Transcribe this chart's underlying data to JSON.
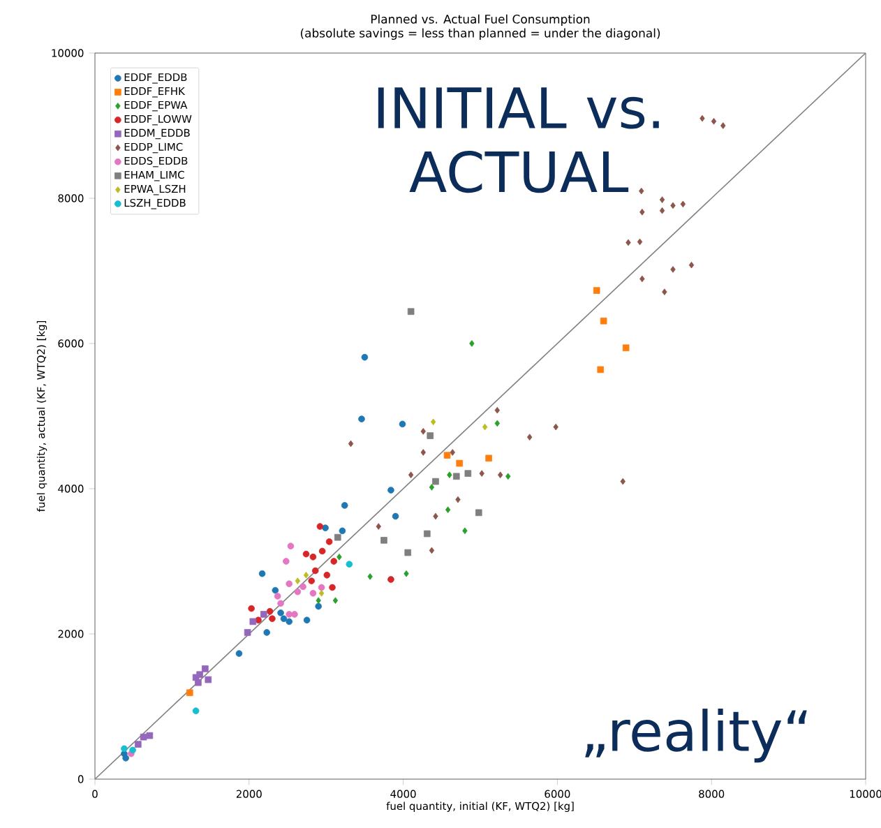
{
  "chart_data": {
    "type": "scatter",
    "title": "Planned vs. Actual Fuel Consumption",
    "subtitle": "(absolute savings = less than planned = under the diagonal)",
    "xlabel": "fuel quantity, initial (KF, WTQ2) [kg]",
    "ylabel": "fuel quantity, actual (KF, WTQ2) [kg]",
    "xlim": [
      0,
      10000
    ],
    "ylim": [
      0,
      10000
    ],
    "xticks": [
      0,
      2000,
      4000,
      6000,
      8000,
      10000
    ],
    "yticks": [
      0,
      2000,
      4000,
      6000,
      8000,
      10000
    ],
    "legend": "top left",
    "annotations": [
      "INITIAL vs. ACTUAL",
      "„reality“"
    ],
    "series": [
      {
        "name": "EDDF_EDDB",
        "color": "#1f77b4",
        "marker": "circle",
        "x": [
          3500,
          3460,
          3990,
          3840,
          3240,
          3900,
          2990,
          3210,
          2170,
          2340,
          2410,
          2450,
          2520,
          2750,
          2900,
          2230,
          1870,
          380,
          400
        ],
        "values": [
          5810,
          4960,
          4890,
          3980,
          3770,
          3620,
          3460,
          3420,
          2830,
          2600,
          2290,
          2210,
          2170,
          2190,
          2380,
          2020,
          1730,
          350,
          290
        ]
      },
      {
        "name": "EDDF_EFHK",
        "color": "#ff7f0e",
        "marker": "square",
        "x": [
          6510,
          6600,
          6890,
          6560,
          4570,
          4730,
          5110,
          1230
        ],
        "values": [
          6730,
          6310,
          5940,
          5640,
          4460,
          4350,
          4420,
          1190
        ]
      },
      {
        "name": "EDDF_EPWA",
        "color": "#2ca02c",
        "marker": "diamond",
        "x": [
          4890,
          5220,
          4600,
          5360,
          4370,
          4580,
          4800,
          4040,
          3570,
          3170,
          3120,
          2900
        ],
        "values": [
          6000,
          4900,
          4190,
          4170,
          4020,
          3710,
          3420,
          2830,
          2790,
          3060,
          2460,
          2460
        ]
      },
      {
        "name": "EDDF_LOWW",
        "color": "#d62728",
        "marker": "circle",
        "x": [
          2920,
          3040,
          2950,
          2740,
          2830,
          3100,
          2860,
          3010,
          2810,
          3080,
          3840,
          2270,
          2030,
          2120,
          2300
        ],
        "values": [
          3480,
          3270,
          3140,
          3100,
          3060,
          3000,
          2870,
          2810,
          2730,
          2640,
          2750,
          2310,
          2350,
          2190,
          2210
        ]
      },
      {
        "name": "EDDM_EDDB",
        "color": "#9467bd",
        "marker": "square",
        "x": [
          560,
          630,
          710,
          1310,
          1360,
          1430,
          1470,
          1340,
          1980,
          2050,
          2190
        ],
        "values": [
          480,
          580,
          600,
          1400,
          1440,
          1520,
          1370,
          1330,
          2020,
          2170,
          2270
        ]
      },
      {
        "name": "EDDP_LIMC",
        "color": "#8c564b",
        "marker": "diamond",
        "x": [
          7880,
          8030,
          8150,
          7090,
          7360,
          7500,
          7630,
          7100,
          7360,
          6920,
          7070,
          7740,
          7500,
          7100,
          7390,
          6850,
          5220,
          5980,
          5640,
          4260,
          4260,
          4640,
          4100,
          5020,
          5260,
          4710,
          4420,
          4370,
          3320,
          3680
        ],
        "values": [
          9100,
          9060,
          9000,
          8100,
          7980,
          7900,
          7920,
          7810,
          7830,
          7390,
          7400,
          7080,
          7020,
          6890,
          6710,
          4100,
          5080,
          4850,
          4710,
          4790,
          4500,
          4500,
          4190,
          4210,
          4190,
          3850,
          3620,
          3150,
          4620,
          3480
        ]
      },
      {
        "name": "EDDS_EDDB",
        "color": "#e377c2",
        "marker": "circle",
        "x": [
          2540,
          2480,
          2520,
          2630,
          2700,
          2940,
          2830,
          2370,
          2410,
          2520,
          2590,
          470
        ],
        "values": [
          3210,
          3000,
          2690,
          2580,
          2650,
          2640,
          2560,
          2520,
          2420,
          2270,
          2270,
          350
        ]
      },
      {
        "name": "EHAM_LIMC",
        "color": "#7f7f7f",
        "marker": "square",
        "x": [
          4100,
          4350,
          4840,
          4690,
          4420,
          4980,
          4310,
          4060,
          3150,
          3750
        ],
        "values": [
          6440,
          4730,
          4210,
          4170,
          4100,
          3670,
          3380,
          3120,
          3330,
          3290
        ]
      },
      {
        "name": "EPWA_LSZH",
        "color": "#bcbd22",
        "marker": "diamond",
        "x": [
          4390,
          5060,
          2630,
          2740,
          2940
        ],
        "values": [
          4920,
          4850,
          2730,
          2810,
          2560
        ]
      },
      {
        "name": "LSZH_EDDB",
        "color": "#17becf",
        "marker": "circle",
        "x": [
          380,
          490,
          1310,
          3300
        ],
        "values": [
          420,
          400,
          940,
          2960
        ]
      },
      {
        "type": "line",
        "color": "#808080",
        "x": [
          0,
          10000
        ],
        "values": [
          0,
          10000
        ]
      }
    ]
  }
}
